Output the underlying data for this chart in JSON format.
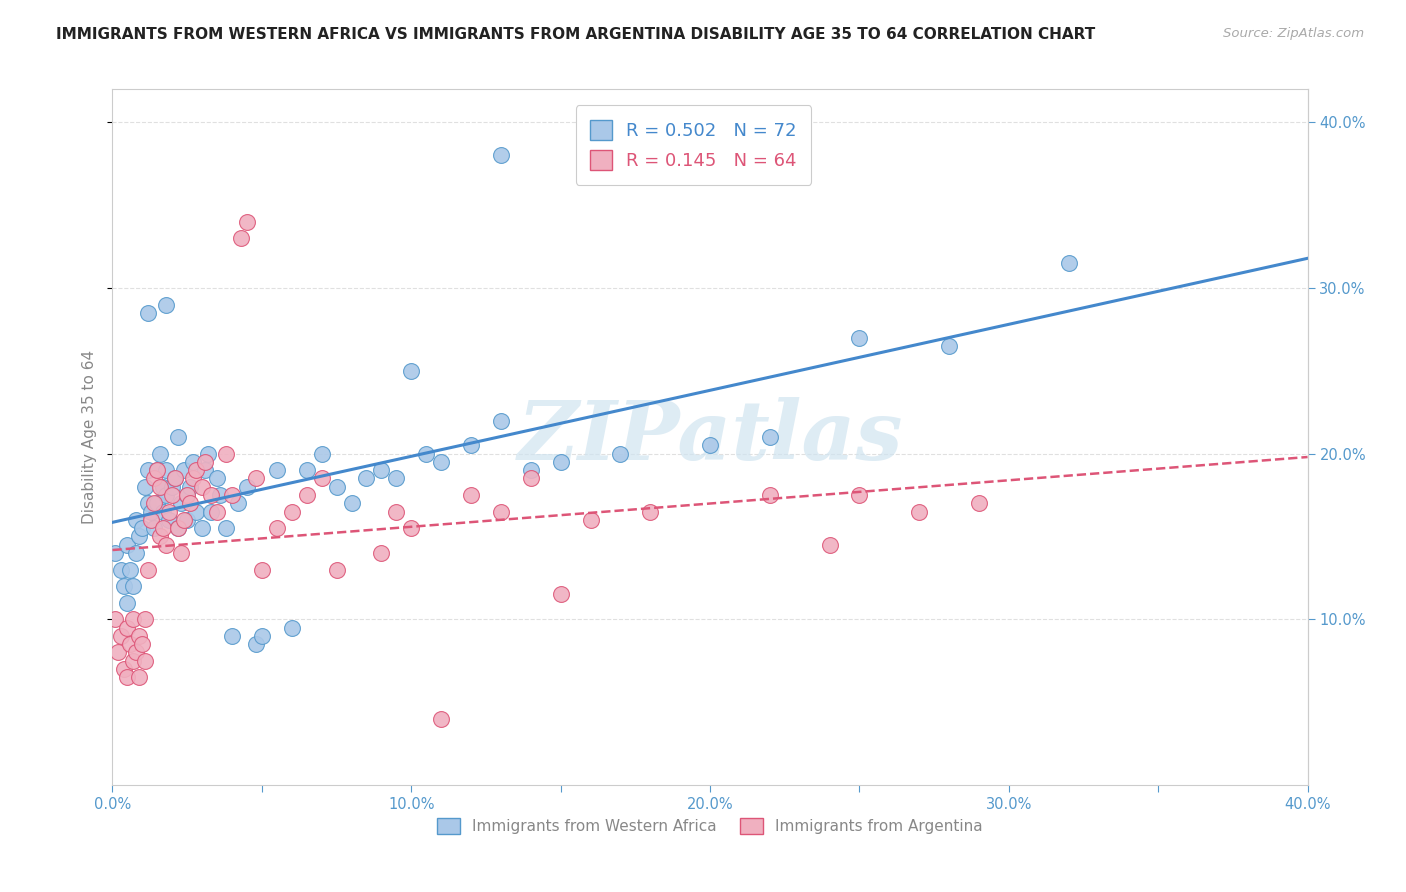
{
  "title": "IMMIGRANTS FROM WESTERN AFRICA VS IMMIGRANTS FROM ARGENTINA DISABILITY AGE 35 TO 64 CORRELATION CHART",
  "source": "Source: ZipAtlas.com",
  "ylabel": "Disability Age 35 to 64",
  "xlim": [
    0.0,
    0.4
  ],
  "ylim": [
    0.0,
    0.42
  ],
  "ytick_vals": [
    0.1,
    0.2,
    0.3,
    0.4
  ],
  "ytick_labels": [
    "10.0%",
    "20.0%",
    "30.0%",
    "40.0%"
  ],
  "xtick_vals": [
    0.0,
    0.05,
    0.1,
    0.15,
    0.2,
    0.25,
    0.3,
    0.35,
    0.4
  ],
  "xtick_labels": [
    "0.0%",
    "",
    "10.0%",
    "",
    "20.0%",
    "",
    "30.0%",
    "",
    "40.0%"
  ],
  "blue_color": "#aac8e8",
  "blue_edge": "#5599cc",
  "blue_line_color": "#4488cc",
  "pink_color": "#f0b0c0",
  "pink_edge": "#dd5577",
  "pink_line_color": "#dd5577",
  "tick_color": "#5599cc",
  "grid_color": "#e0e0e0",
  "watermark": "ZIPatlas",
  "watermark_color": "#d0e4f0",
  "blue_R": 0.502,
  "blue_N": 72,
  "pink_R": 0.145,
  "pink_N": 64,
  "legend_label_blue": "Immigrants from Western Africa",
  "legend_label_pink": "Immigrants from Argentina",
  "blue_x": [
    0.001,
    0.003,
    0.004,
    0.005,
    0.005,
    0.006,
    0.007,
    0.008,
    0.008,
    0.009,
    0.01,
    0.011,
    0.012,
    0.012,
    0.013,
    0.014,
    0.015,
    0.015,
    0.016,
    0.017,
    0.017,
    0.018,
    0.018,
    0.019,
    0.02,
    0.021,
    0.022,
    0.023,
    0.024,
    0.025,
    0.025,
    0.026,
    0.027,
    0.028,
    0.03,
    0.031,
    0.032,
    0.033,
    0.035,
    0.036,
    0.038,
    0.04,
    0.042,
    0.045,
    0.048,
    0.05,
    0.055,
    0.06,
    0.065,
    0.07,
    0.075,
    0.08,
    0.085,
    0.09,
    0.095,
    0.1,
    0.105,
    0.11,
    0.12,
    0.13,
    0.14,
    0.15,
    0.17,
    0.2,
    0.22,
    0.25,
    0.28,
    0.32,
    0.012,
    0.018,
    0.022,
    0.13
  ],
  "blue_y": [
    0.14,
    0.13,
    0.12,
    0.145,
    0.11,
    0.13,
    0.12,
    0.16,
    0.14,
    0.15,
    0.155,
    0.18,
    0.17,
    0.19,
    0.165,
    0.155,
    0.17,
    0.19,
    0.2,
    0.18,
    0.165,
    0.175,
    0.19,
    0.16,
    0.18,
    0.185,
    0.155,
    0.17,
    0.19,
    0.16,
    0.175,
    0.18,
    0.195,
    0.165,
    0.155,
    0.19,
    0.2,
    0.165,
    0.185,
    0.175,
    0.155,
    0.09,
    0.17,
    0.18,
    0.085,
    0.09,
    0.19,
    0.095,
    0.19,
    0.2,
    0.18,
    0.17,
    0.185,
    0.19,
    0.185,
    0.25,
    0.2,
    0.195,
    0.205,
    0.22,
    0.19,
    0.195,
    0.2,
    0.205,
    0.21,
    0.27,
    0.265,
    0.315,
    0.285,
    0.29,
    0.21,
    0.38
  ],
  "pink_x": [
    0.001,
    0.002,
    0.003,
    0.004,
    0.005,
    0.005,
    0.006,
    0.007,
    0.007,
    0.008,
    0.009,
    0.009,
    0.01,
    0.011,
    0.011,
    0.012,
    0.013,
    0.014,
    0.014,
    0.015,
    0.016,
    0.016,
    0.017,
    0.018,
    0.019,
    0.02,
    0.021,
    0.022,
    0.023,
    0.024,
    0.025,
    0.026,
    0.027,
    0.028,
    0.03,
    0.031,
    0.033,
    0.035,
    0.038,
    0.04,
    0.043,
    0.045,
    0.048,
    0.05,
    0.055,
    0.06,
    0.065,
    0.07,
    0.075,
    0.09,
    0.095,
    0.1,
    0.11,
    0.12,
    0.13,
    0.14,
    0.15,
    0.16,
    0.18,
    0.22,
    0.24,
    0.25,
    0.27,
    0.29
  ],
  "pink_y": [
    0.1,
    0.08,
    0.09,
    0.07,
    0.065,
    0.095,
    0.085,
    0.075,
    0.1,
    0.08,
    0.09,
    0.065,
    0.085,
    0.075,
    0.1,
    0.13,
    0.16,
    0.17,
    0.185,
    0.19,
    0.15,
    0.18,
    0.155,
    0.145,
    0.165,
    0.175,
    0.185,
    0.155,
    0.14,
    0.16,
    0.175,
    0.17,
    0.185,
    0.19,
    0.18,
    0.195,
    0.175,
    0.165,
    0.2,
    0.175,
    0.33,
    0.34,
    0.185,
    0.13,
    0.155,
    0.165,
    0.175,
    0.185,
    0.13,
    0.14,
    0.165,
    0.155,
    0.04,
    0.175,
    0.165,
    0.185,
    0.115,
    0.16,
    0.165,
    0.175,
    0.145,
    0.175,
    0.165,
    0.17
  ]
}
